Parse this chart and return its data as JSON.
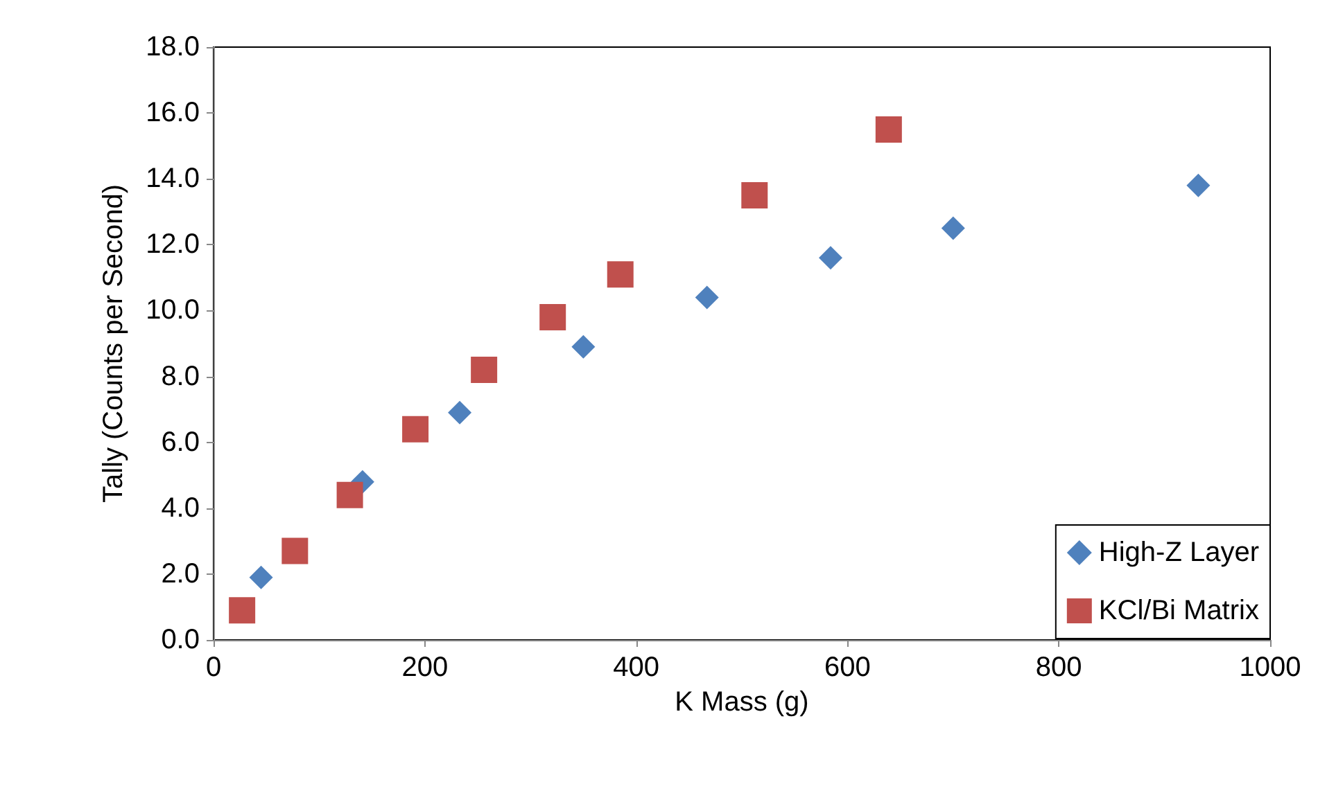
{
  "chart_data": {
    "type": "scatter",
    "xlabel": "K Mass (g)",
    "ylabel": "Tally (Counts per Second)",
    "xlim": [
      0,
      1000
    ],
    "xticks": [
      0,
      200,
      400,
      600,
      800,
      1000
    ],
    "ylim": [
      0,
      18
    ],
    "yticks": [
      {
        "value": 0,
        "label": "0.0"
      },
      {
        "value": 2,
        "label": "2.0"
      },
      {
        "value": 4,
        "label": "4.0"
      },
      {
        "value": 6,
        "label": "6.0"
      },
      {
        "value": 8,
        "label": "8.0"
      },
      {
        "value": 10,
        "label": "10.0"
      },
      {
        "value": 12,
        "label": "12.0"
      },
      {
        "value": 14,
        "label": "14.0"
      },
      {
        "value": 16,
        "label": "16.0"
      },
      {
        "value": 18,
        "label": "18.0"
      }
    ],
    "grid": false,
    "legend": "bottom right",
    "series": [
      {
        "name": "High-Z Layer",
        "color": "#4f81bd",
        "marker": "diamond",
        "x": [
          45,
          141,
          233,
          350,
          467,
          584,
          700,
          932
        ],
        "values": [
          1.9,
          4.8,
          6.9,
          8.9,
          10.4,
          11.6,
          12.5,
          13.8
        ]
      },
      {
        "name": "KCl/Bi Matrix",
        "color": "#c0504d",
        "marker": "square",
        "x": [
          27,
          77,
          129,
          191,
          256,
          321,
          385,
          512,
          639
        ],
        "values": [
          0.9,
          2.7,
          4.4,
          6.4,
          8.2,
          9.8,
          11.1,
          13.5,
          15.5
        ]
      }
    ]
  }
}
